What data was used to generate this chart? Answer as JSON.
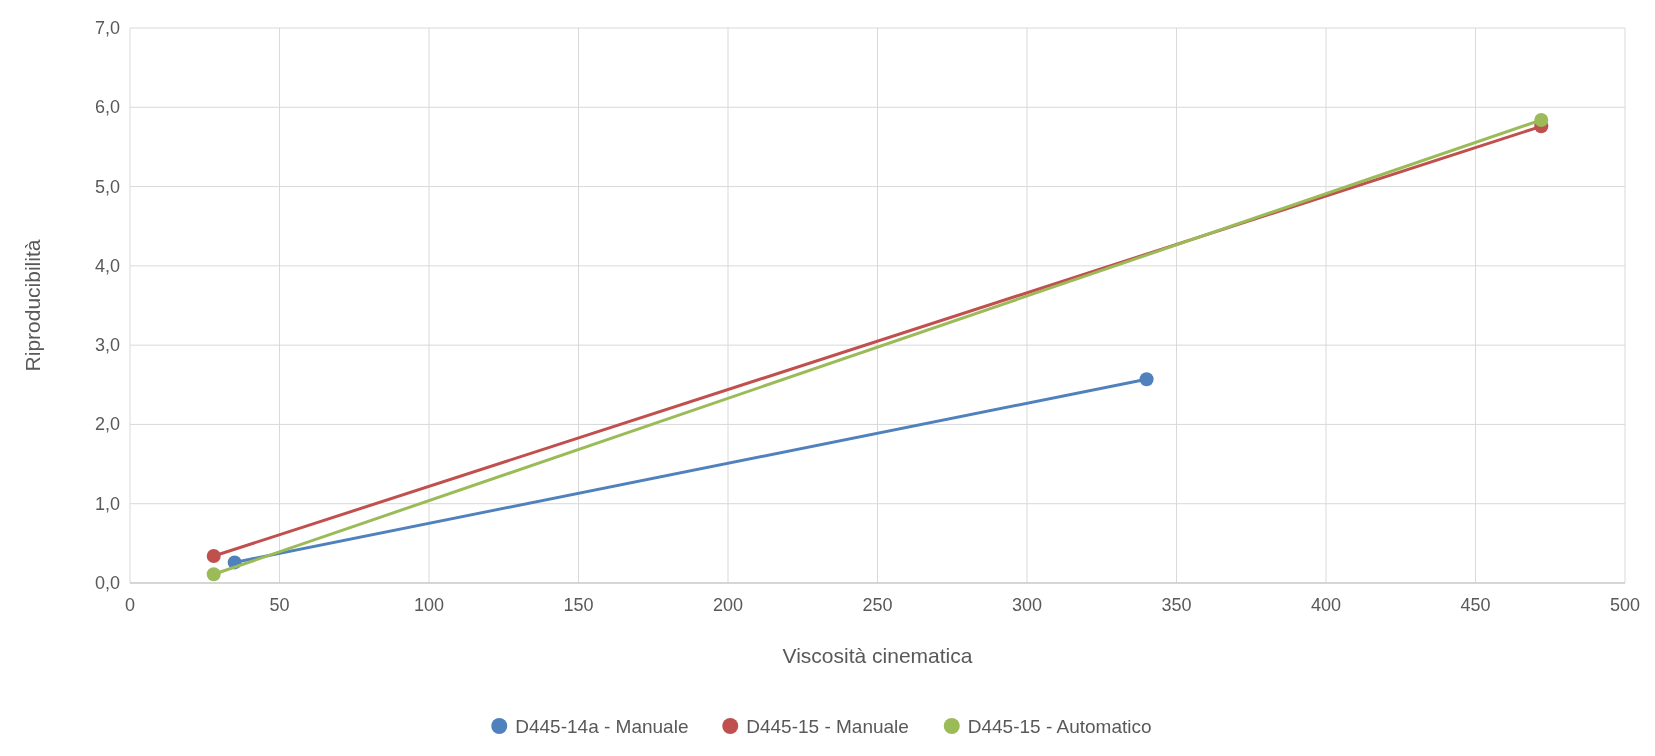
{
  "chart_data": {
    "type": "line",
    "xlabel": "Viscosità cinematica",
    "ylabel": "Riproducibilità",
    "series": [
      {
        "name": "D445-14a - Manuale",
        "color": "#4f81bd",
        "x": [
          35,
          340
        ],
        "values": [
          0.26,
          2.57
        ]
      },
      {
        "name": "D445-15 - Manuale",
        "color": "#c0504d",
        "x": [
          28,
          472
        ],
        "values": [
          0.34,
          5.76
        ]
      },
      {
        "name": "D445-15 - Automatico",
        "color": "#9bbb59",
        "x": [
          28,
          472
        ],
        "values": [
          0.11,
          5.84
        ]
      }
    ],
    "xlim": [
      0,
      500
    ],
    "xticks": [
      0,
      50,
      100,
      150,
      200,
      250,
      300,
      350,
      400,
      450,
      500
    ],
    "ylim": [
      0,
      7
    ],
    "yticks": [
      {
        "value": 0,
        "label": "0,0"
      },
      {
        "value": 1,
        "label": "1,0"
      },
      {
        "value": 2,
        "label": "2,0"
      },
      {
        "value": 3,
        "label": "3,0"
      },
      {
        "value": 4,
        "label": "4,0"
      },
      {
        "value": 5,
        "label": "5,0"
      },
      {
        "value": 6,
        "label": "6,0"
      },
      {
        "value": 7,
        "label": "7,0"
      }
    ],
    "grid": true,
    "legend": "bottom",
    "marker": "circle",
    "line_style": "solid"
  }
}
